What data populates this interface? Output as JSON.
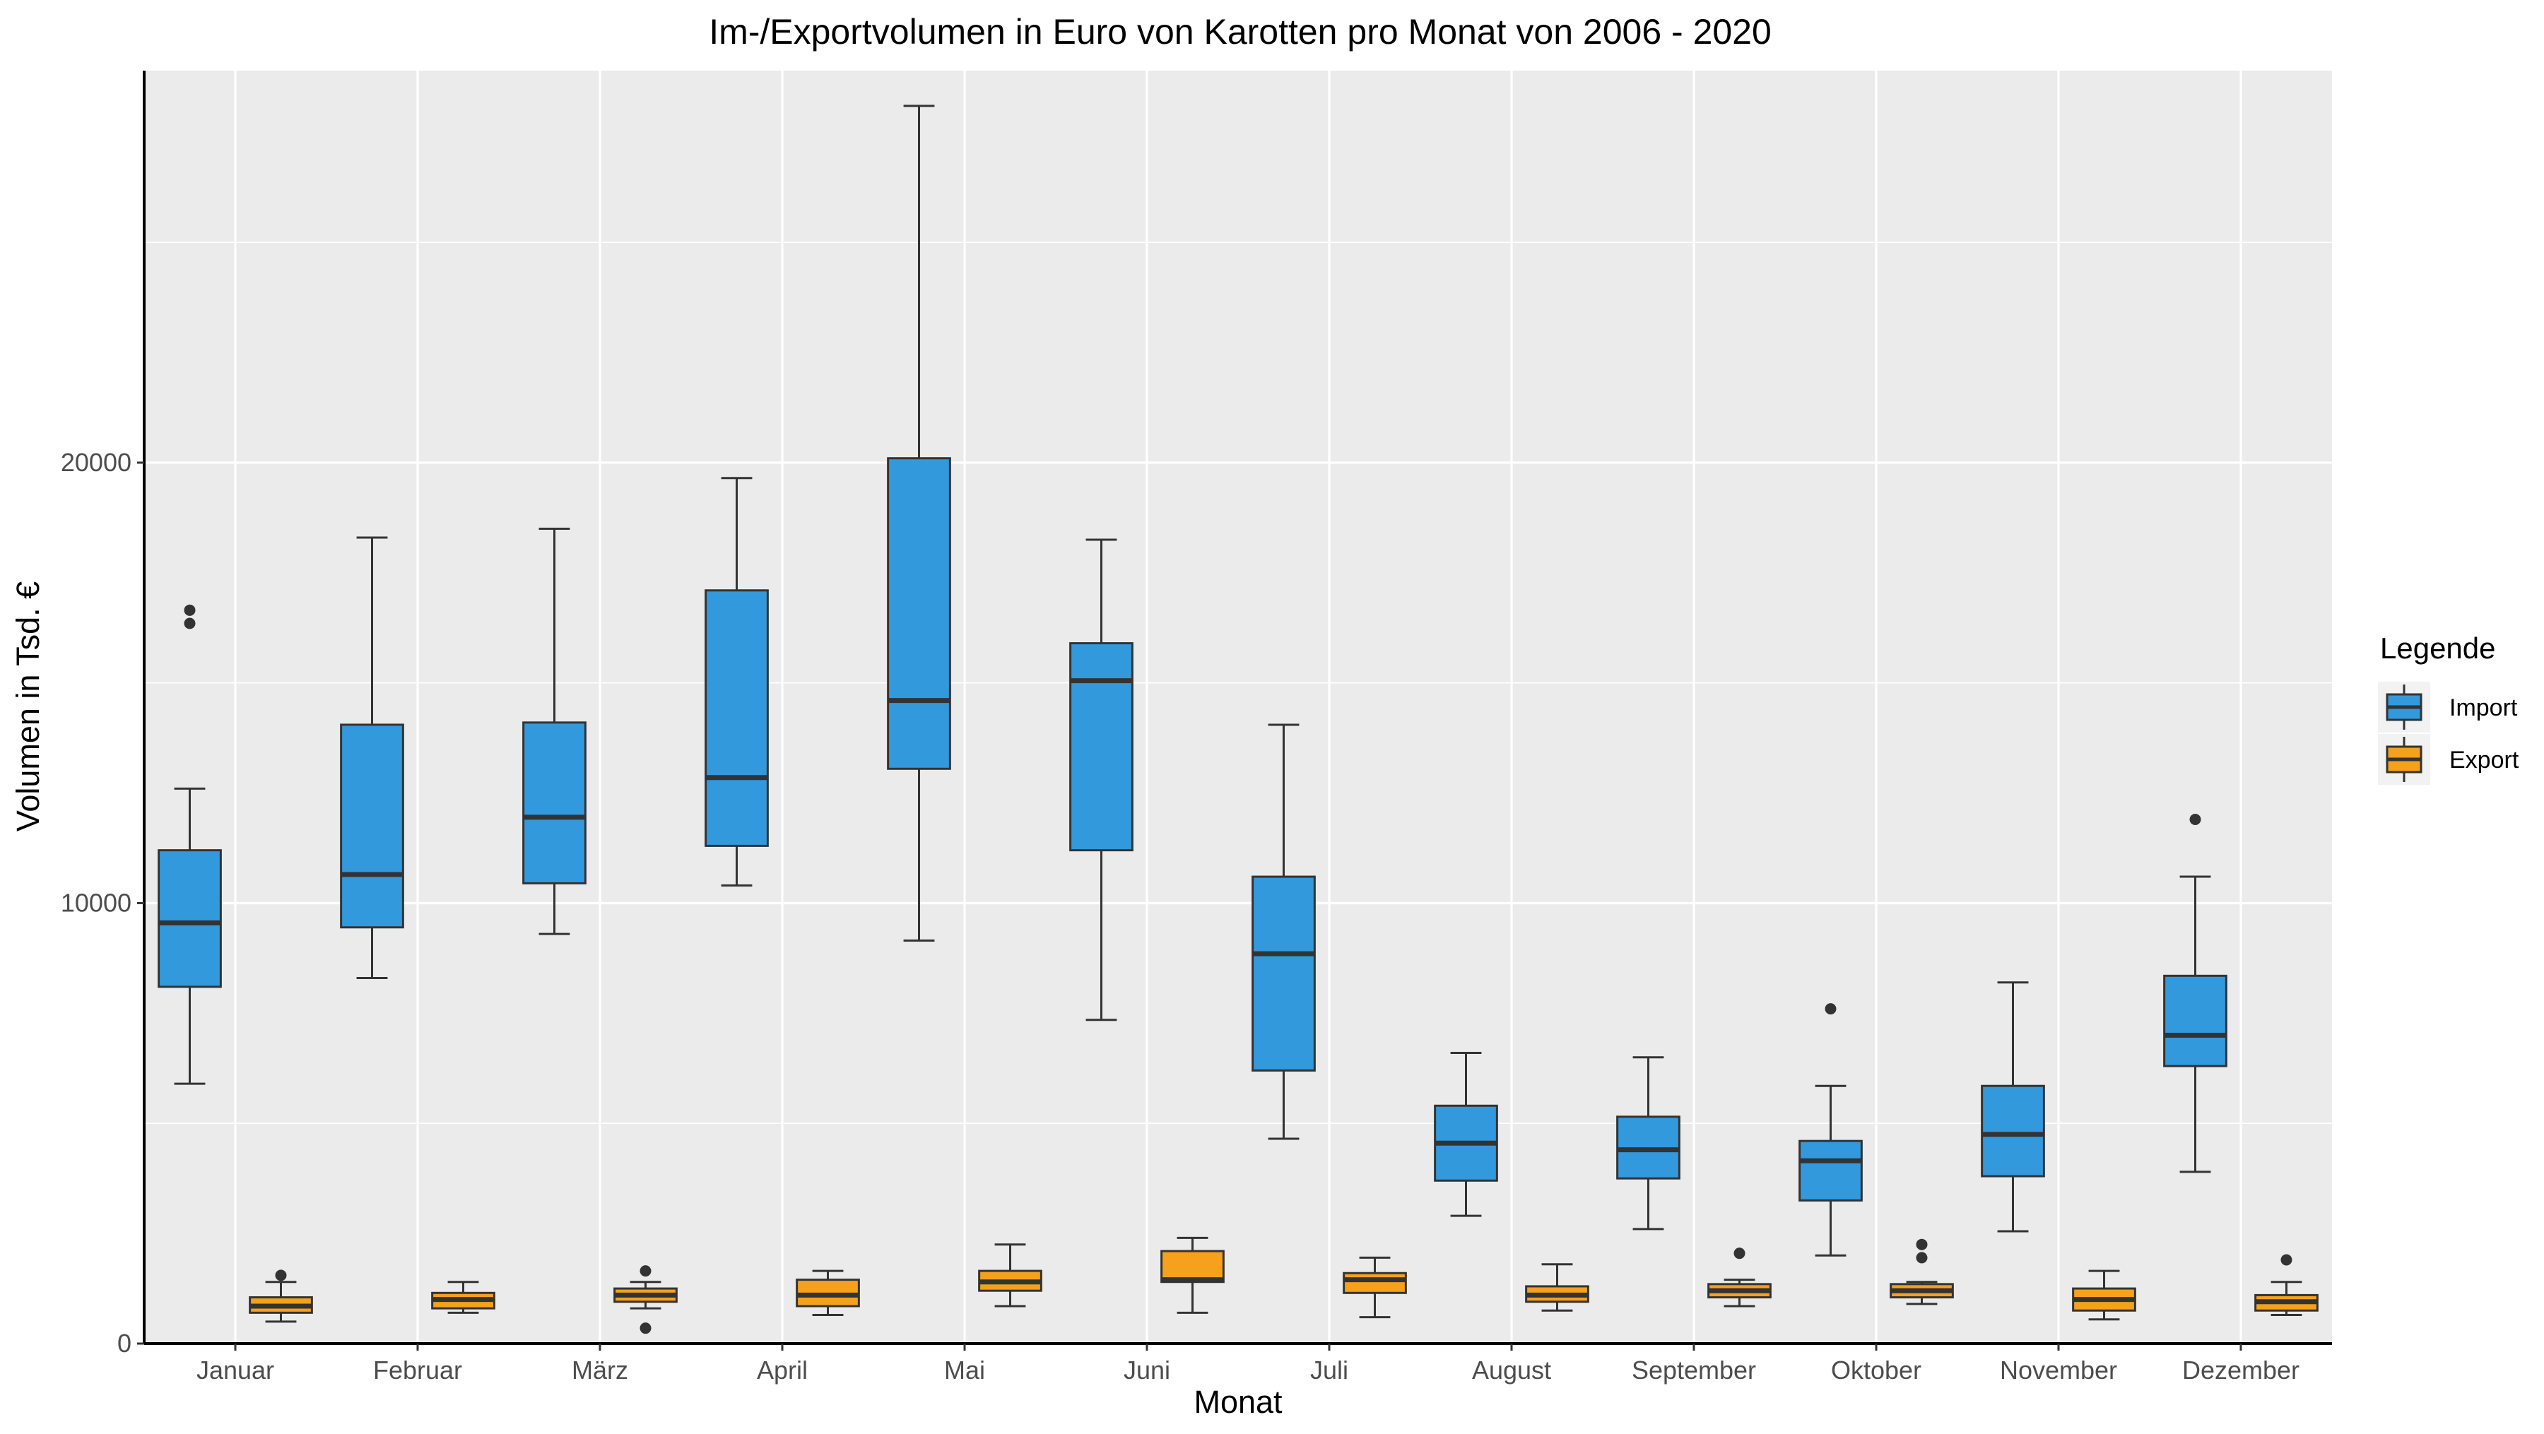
{
  "chart_data": {
    "type": "boxplot",
    "title": "Im-/Exportvolumen in Euro von Karotten pro Monat von 2006 - 2020",
    "xlabel": "Monat",
    "ylabel": "Volumen in Tsd. €",
    "ylim": [
      0,
      28900
    ],
    "y_ticks": [
      0,
      10000,
      20000
    ],
    "y_tick_labels": [
      "0",
      "10000",
      "20000"
    ],
    "grid": true,
    "legend": {
      "title": "Legende",
      "position": "right"
    },
    "categories": [
      "Januar",
      "Februar",
      "März",
      "April",
      "Mai",
      "Juni",
      "Juli",
      "August",
      "September",
      "Oktober",
      "November",
      "Dezember"
    ],
    "series": [
      {
        "name": "Import",
        "color": "#3399DD",
        "boxes": [
          {
            "whisker_low": 5900,
            "q1": 8100,
            "median": 9550,
            "q3": 11200,
            "whisker_high": 12600,
            "outliers": [
              16350,
              16650
            ]
          },
          {
            "whisker_low": 8300,
            "q1": 9450,
            "median": 10650,
            "q3": 14050,
            "whisker_high": 18300,
            "outliers": []
          },
          {
            "whisker_low": 9300,
            "q1": 10450,
            "median": 11950,
            "q3": 14100,
            "whisker_high": 18500,
            "outliers": []
          },
          {
            "whisker_low": 10400,
            "q1": 11300,
            "median": 12850,
            "q3": 17100,
            "whisker_high": 19650,
            "outliers": []
          },
          {
            "whisker_low": 9150,
            "q1": 13050,
            "median": 14600,
            "q3": 20100,
            "whisker_high": 28100,
            "outliers": []
          },
          {
            "whisker_low": 7350,
            "q1": 11200,
            "median": 15050,
            "q3": 15900,
            "whisker_high": 18250,
            "outliers": []
          },
          {
            "whisker_low": 4650,
            "q1": 6200,
            "median": 8850,
            "q3": 10600,
            "whisker_high": 14050,
            "outliers": []
          },
          {
            "whisker_low": 2900,
            "q1": 3700,
            "median": 4550,
            "q3": 5400,
            "whisker_high": 6600,
            "outliers": []
          },
          {
            "whisker_low": 2600,
            "q1": 3750,
            "median": 4400,
            "q3": 5150,
            "whisker_high": 6500,
            "outliers": []
          },
          {
            "whisker_low": 2000,
            "q1": 3250,
            "median": 4150,
            "q3": 4600,
            "whisker_high": 5850,
            "outliers": [
              7600
            ]
          },
          {
            "whisker_low": 2550,
            "q1": 3800,
            "median": 4750,
            "q3": 5850,
            "whisker_high": 8200,
            "outliers": []
          },
          {
            "whisker_low": 3900,
            "q1": 6300,
            "median": 7000,
            "q3": 8350,
            "whisker_high": 10600,
            "outliers": [
              11900
            ]
          }
        ]
      },
      {
        "name": "Export",
        "color": "#F5A11C",
        "boxes": [
          {
            "whisker_low": 500,
            "q1": 700,
            "median": 850,
            "q3": 1050,
            "whisker_high": 1400,
            "outliers": [
              1550
            ]
          },
          {
            "whisker_low": 700,
            "q1": 800,
            "median": 1000,
            "q3": 1150,
            "whisker_high": 1400,
            "outliers": []
          },
          {
            "whisker_low": 800,
            "q1": 950,
            "median": 1100,
            "q3": 1250,
            "whisker_high": 1400,
            "outliers": [
              350,
              1650
            ]
          },
          {
            "whisker_low": 650,
            "q1": 850,
            "median": 1100,
            "q3": 1450,
            "whisker_high": 1650,
            "outliers": []
          },
          {
            "whisker_low": 850,
            "q1": 1200,
            "median": 1400,
            "q3": 1650,
            "whisker_high": 2250,
            "outliers": []
          },
          {
            "whisker_low": 700,
            "q1": 1400,
            "median": 1450,
            "q3": 2100,
            "whisker_high": 2400,
            "outliers": []
          },
          {
            "whisker_low": 600,
            "q1": 1150,
            "median": 1450,
            "q3": 1600,
            "whisker_high": 1950,
            "outliers": []
          },
          {
            "whisker_low": 750,
            "q1": 950,
            "median": 1100,
            "q3": 1300,
            "whisker_high": 1800,
            "outliers": []
          },
          {
            "whisker_low": 850,
            "q1": 1050,
            "median": 1200,
            "q3": 1350,
            "whisker_high": 1450,
            "outliers": [
              2050
            ]
          },
          {
            "whisker_low": 900,
            "q1": 1050,
            "median": 1200,
            "q3": 1350,
            "whisker_high": 1400,
            "outliers": [
              1950,
              2250
            ]
          },
          {
            "whisker_low": 550,
            "q1": 750,
            "median": 1000,
            "q3": 1250,
            "whisker_high": 1650,
            "outliers": []
          },
          {
            "whisker_low": 650,
            "q1": 750,
            "median": 950,
            "q3": 1100,
            "whisker_high": 1400,
            "outliers": [
              1900
            ]
          }
        ]
      }
    ]
  }
}
